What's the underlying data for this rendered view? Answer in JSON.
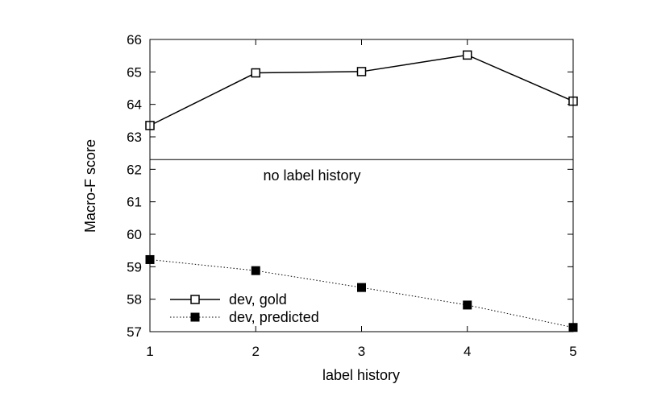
{
  "chart_data": {
    "type": "line",
    "xlabel": "label history",
    "ylabel": "Macro-F score",
    "xlim": [
      1,
      5
    ],
    "ylim": [
      57,
      66
    ],
    "xticks": [
      "1",
      "2",
      "3",
      "4",
      "5"
    ],
    "yticks": [
      "57",
      "58",
      "59",
      "60",
      "61",
      "62",
      "63",
      "64",
      "65",
      "66"
    ],
    "grid": false,
    "legend_position": "bottom-left",
    "series": [
      {
        "name": "dev, gold",
        "style": "solid",
        "marker": "open-square",
        "color": "#000000",
        "x": [
          1,
          2,
          3,
          4,
          5
        ],
        "y": [
          63.35,
          64.97,
          65.01,
          65.52,
          64.1
        ]
      },
      {
        "name": "dev, predicted",
        "style": "dotted",
        "marker": "filled-square",
        "color": "#000000",
        "x": [
          1,
          2,
          3,
          4,
          5
        ],
        "y": [
          59.22,
          58.88,
          58.36,
          57.82,
          57.13
        ]
      }
    ],
    "reference_line": {
      "y": 62.3,
      "label": "no label history"
    }
  }
}
